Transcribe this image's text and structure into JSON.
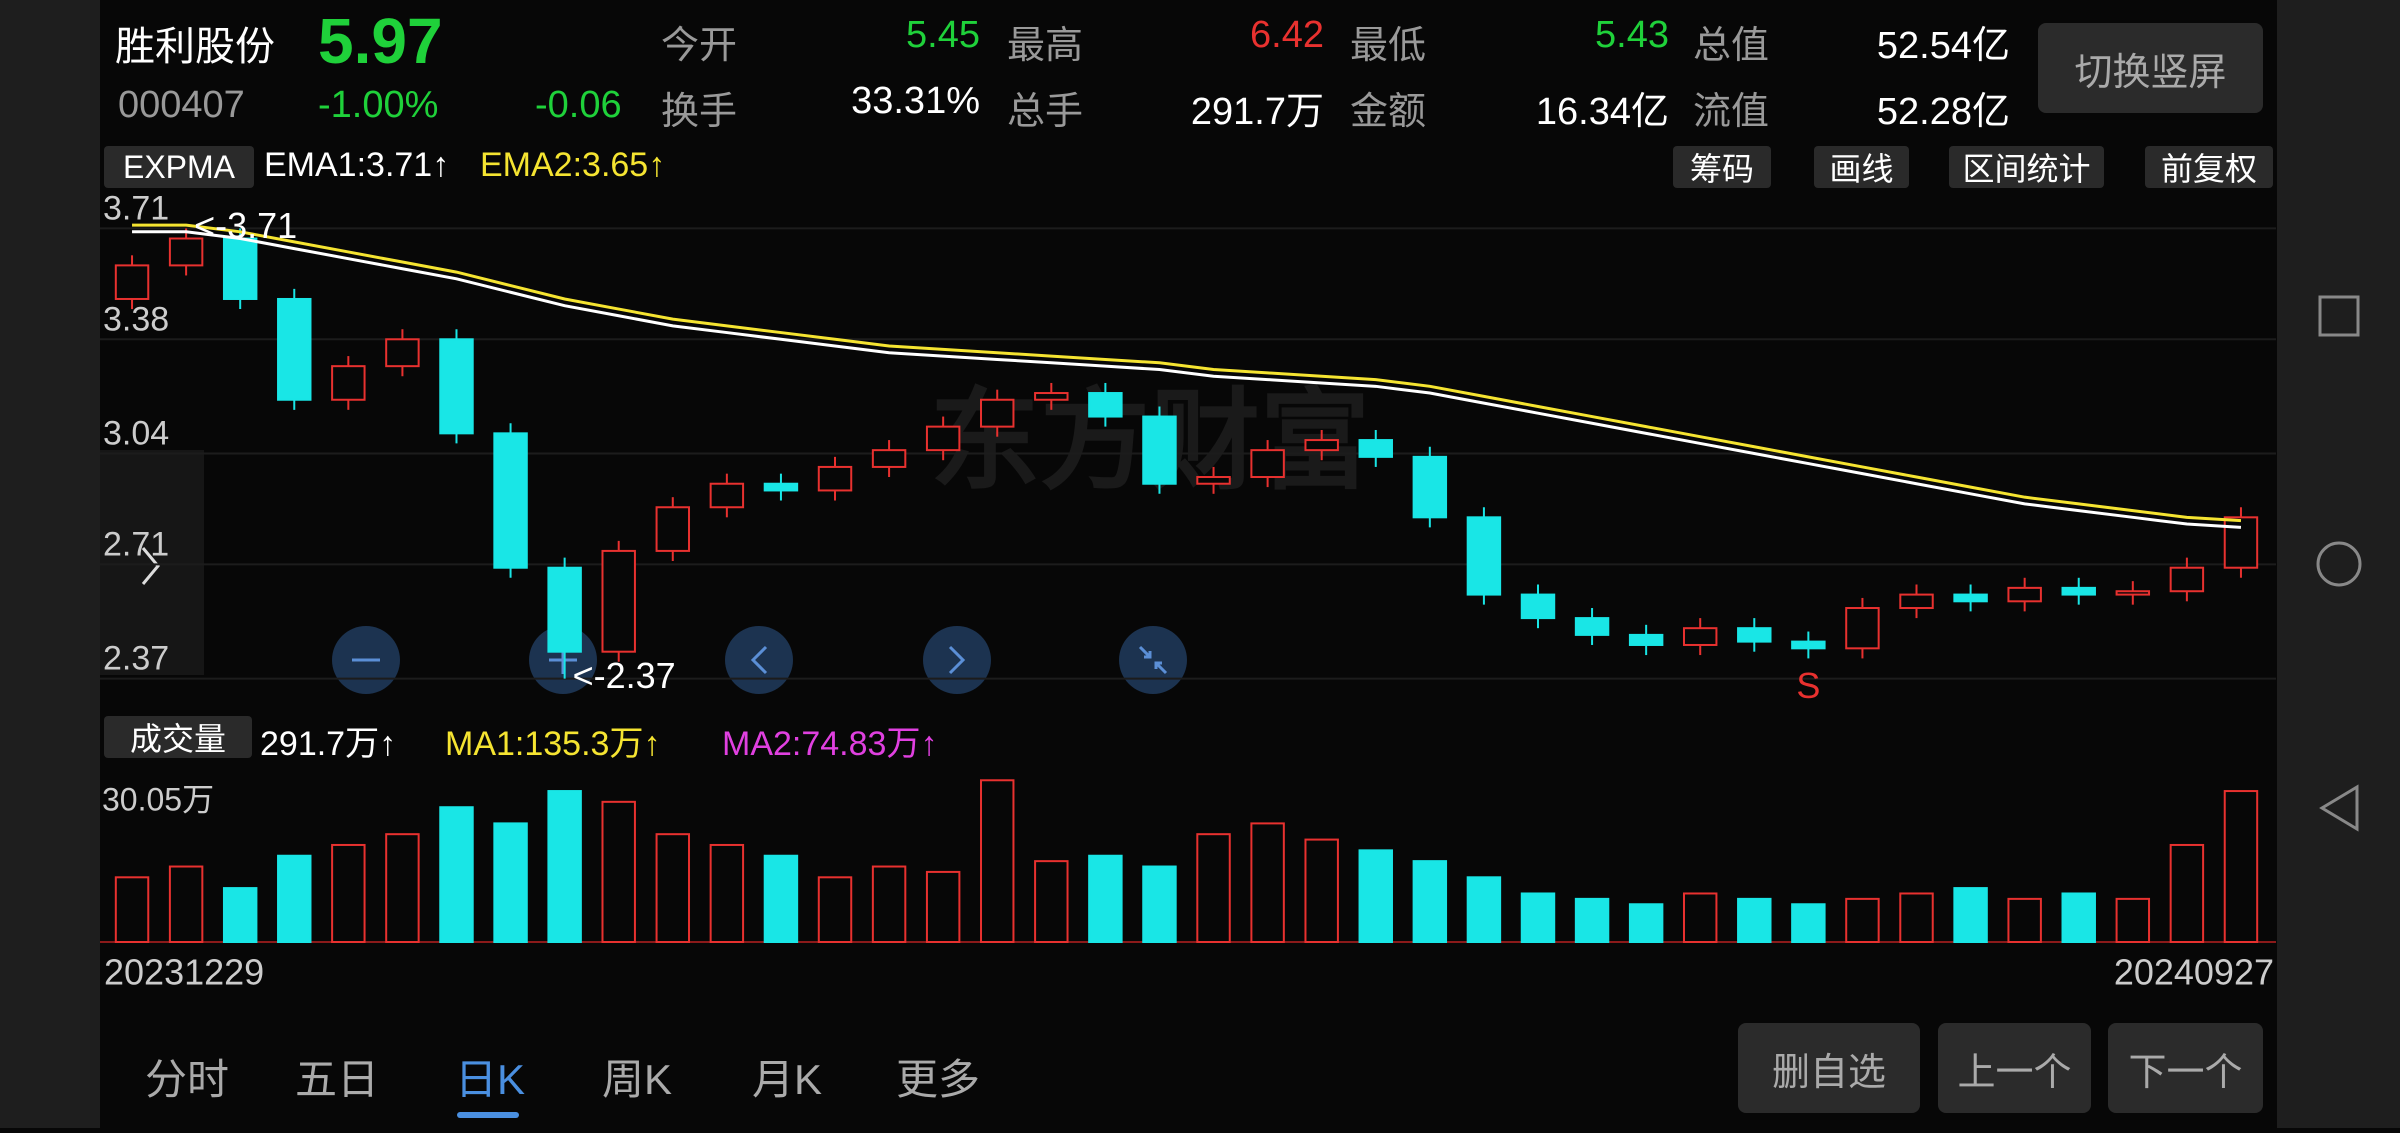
{
  "header": {
    "name": "胜利股份",
    "price": "5.97",
    "code": "000407",
    "change_pct": "-1.00%",
    "change": "-0.06",
    "toggle_button": "切换竖屏",
    "stats": [
      {
        "label": "今开",
        "value": "5.45",
        "color": "#1fd13a"
      },
      {
        "label": "最高",
        "value": "6.42",
        "color": "#e8312f"
      },
      {
        "label": "最低",
        "value": "5.43",
        "color": "#1fd13a"
      },
      {
        "label": "总值",
        "value": "52.54亿",
        "color": "#ffffff"
      },
      {
        "label": "换手",
        "value": "33.31%",
        "color": "#ffffff"
      },
      {
        "label": "总手",
        "value": "291.7万",
        "color": "#ffffff"
      },
      {
        "label": "金额",
        "value": "16.34亿",
        "color": "#ffffff"
      },
      {
        "label": "流值",
        "value": "52.28亿",
        "color": "#ffffff"
      }
    ]
  },
  "toolbar": {
    "indicator": "EXPMA",
    "buttons": [
      "筹码",
      "画线",
      "区间统计",
      "前复权"
    ]
  },
  "chart_data": [
    {
      "type": "candlestick",
      "watermark": "东方财富",
      "up_color": "#e8312f",
      "down_color": "#19e6e6",
      "open": [
        3.5,
        3.6,
        3.68,
        3.5,
        3.2,
        3.3,
        3.38,
        3.1,
        2.7,
        2.45,
        2.75,
        2.88,
        2.95,
        2.93,
        3.0,
        3.05,
        3.12,
        3.2,
        3.22,
        3.15,
        2.95,
        2.97,
        3.05,
        3.08,
        3.03,
        2.85,
        2.62,
        2.55,
        2.5,
        2.47,
        2.52,
        2.48,
        2.46,
        2.58,
        2.62,
        2.6,
        2.64,
        2.62,
        2.63,
        2.7
      ],
      "high": [
        3.63,
        3.71,
        3.71,
        3.53,
        3.33,
        3.41,
        3.41,
        3.13,
        2.73,
        2.78,
        2.91,
        2.98,
        2.98,
        3.03,
        3.08,
        3.15,
        3.23,
        3.25,
        3.25,
        3.18,
        3.0,
        3.08,
        3.11,
        3.11,
        3.06,
        2.88,
        2.65,
        2.58,
        2.53,
        2.55,
        2.55,
        2.51,
        2.61,
        2.65,
        2.65,
        2.67,
        2.67,
        2.66,
        2.73,
        2.88
      ],
      "low": [
        3.47,
        3.57,
        3.47,
        3.17,
        3.17,
        3.27,
        3.07,
        2.67,
        2.37,
        2.42,
        2.72,
        2.85,
        2.9,
        2.9,
        2.97,
        3.02,
        3.09,
        3.17,
        3.12,
        2.92,
        2.92,
        2.94,
        3.02,
        3.0,
        2.82,
        2.59,
        2.52,
        2.47,
        2.44,
        2.44,
        2.45,
        2.43,
        2.43,
        2.55,
        2.57,
        2.57,
        2.59,
        2.59,
        2.6,
        2.67
      ],
      "close": [
        3.6,
        3.68,
        3.5,
        3.2,
        3.3,
        3.38,
        3.1,
        2.7,
        2.45,
        2.75,
        2.88,
        2.95,
        2.93,
        3.0,
        3.05,
        3.12,
        3.2,
        3.22,
        3.15,
        2.95,
        2.97,
        3.05,
        3.08,
        3.03,
        2.85,
        2.62,
        2.55,
        2.5,
        2.47,
        2.52,
        2.48,
        2.46,
        2.58,
        2.62,
        2.6,
        2.64,
        2.62,
        2.63,
        2.7,
        2.85
      ],
      "series": [
        {
          "label": "EMA1:3.71↑",
          "color": "#ffffff",
          "values": [
            3.7,
            3.7,
            3.68,
            3.65,
            3.62,
            3.59,
            3.56,
            3.52,
            3.48,
            3.45,
            3.42,
            3.4,
            3.38,
            3.36,
            3.34,
            3.33,
            3.32,
            3.31,
            3.3,
            3.29,
            3.27,
            3.26,
            3.25,
            3.24,
            3.22,
            3.19,
            3.16,
            3.13,
            3.1,
            3.07,
            3.04,
            3.01,
            2.98,
            2.95,
            2.92,
            2.89,
            2.87,
            2.85,
            2.83,
            2.82
          ]
        },
        {
          "label": "EMA2:3.65↑",
          "color": "#f5e431",
          "values": [
            3.72,
            3.72,
            3.7,
            3.67,
            3.64,
            3.61,
            3.58,
            3.54,
            3.5,
            3.47,
            3.44,
            3.42,
            3.4,
            3.38,
            3.36,
            3.35,
            3.34,
            3.33,
            3.32,
            3.31,
            3.29,
            3.28,
            3.27,
            3.26,
            3.24,
            3.21,
            3.18,
            3.15,
            3.12,
            3.09,
            3.06,
            3.03,
            3.0,
            2.97,
            2.94,
            2.91,
            2.89,
            2.87,
            2.85,
            2.84
          ]
        }
      ],
      "ylim": [
        2.33,
        3.75
      ],
      "yticks": [
        3.71,
        3.38,
        3.04,
        2.71,
        2.37
      ],
      "annotations": [
        {
          "text": "<-3.71",
          "index": 1,
          "value": 3.71
        },
        {
          "text": "<-2.37",
          "index": 8,
          "value": 2.37
        },
        {
          "text": "S",
          "index": 31,
          "value": 2.43
        }
      ]
    },
    {
      "type": "bar",
      "indicator": "成交量",
      "total": "291.7万↑",
      "legend": [
        {
          "label": "MA1:135.3万↑",
          "color": "#f5e431"
        },
        {
          "label": "MA2:74.83万↑",
          "color": "#e040e0"
        }
      ],
      "values": [
        12,
        14,
        10,
        16,
        18,
        20,
        25,
        22,
        28,
        26,
        20,
        18,
        16,
        12,
        14,
        13,
        30,
        15,
        16,
        14,
        20,
        22,
        19,
        17,
        15,
        12,
        9,
        8,
        7,
        9,
        8,
        7,
        8,
        9,
        10,
        8,
        9,
        8,
        18,
        28
      ],
      "ylim": [
        0,
        30.05
      ],
      "yticks": [
        {
          "value": 30.05,
          "label": "30.05万"
        }
      ],
      "xticks": [
        {
          "value": 0,
          "label": "20231229"
        },
        {
          "value": 39,
          "label": "20240927"
        }
      ]
    }
  ],
  "tabs": [
    "分时",
    "五日",
    "日K",
    "周K",
    "月K",
    "更多"
  ],
  "active_tab": 2,
  "buttons": [
    "删自选",
    "上一个",
    "下一个"
  ]
}
